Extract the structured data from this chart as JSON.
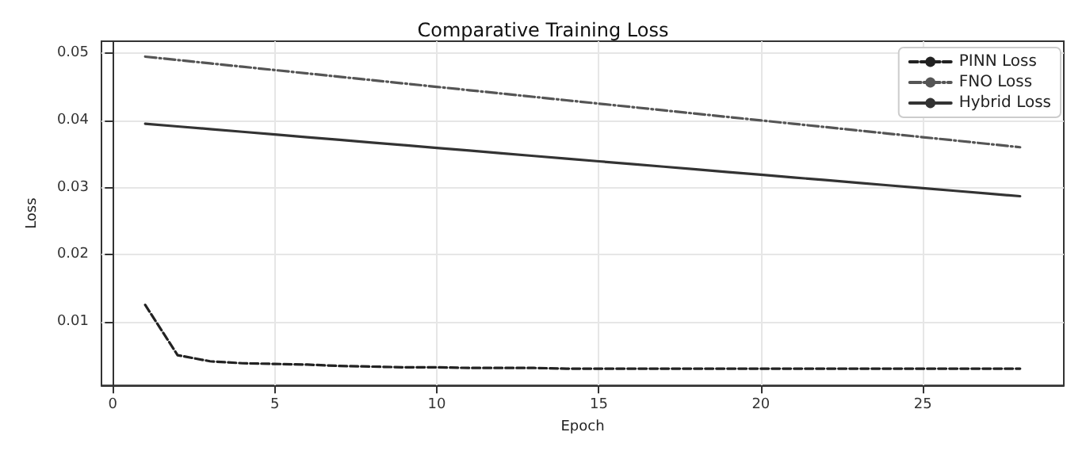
{
  "chart_data": {
    "type": "line",
    "title": "Comparative Training Loss",
    "xlabel": "Epoch",
    "ylabel": "Loss",
    "x": [
      1,
      2,
      3,
      4,
      5,
      6,
      7,
      8,
      9,
      10,
      11,
      12,
      13,
      14,
      15,
      16,
      17,
      18,
      19,
      20,
      21,
      22,
      23,
      24,
      25,
      26,
      27,
      28
    ],
    "series": [
      {
        "name": "PINN Loss",
        "color": "#222222",
        "line_style": "dashed",
        "values": [
          0.0125,
          0.005,
          0.0041,
          0.0038,
          0.0037,
          0.0036,
          0.0034,
          0.0033,
          0.0032,
          0.0032,
          0.0031,
          0.0031,
          0.0031,
          0.003,
          0.003,
          0.003,
          0.003,
          0.003,
          0.003,
          0.003,
          0.003,
          0.003,
          0.003,
          0.003,
          0.003,
          0.003,
          0.003,
          0.003
        ]
      },
      {
        "name": "FNO Loss",
        "color": "#555555",
        "line_style": "dashdot",
        "values": [
          0.0495,
          0.049,
          0.0485,
          0.048,
          0.0475,
          0.047,
          0.0465,
          0.046,
          0.0455,
          0.045,
          0.0445,
          0.044,
          0.0435,
          0.043,
          0.0425,
          0.042,
          0.0415,
          0.041,
          0.0405,
          0.04,
          0.0395,
          0.039,
          0.0385,
          0.038,
          0.0375,
          0.037,
          0.0365,
          0.036
        ]
      },
      {
        "name": "Hybrid Loss",
        "color": "#333333",
        "line_style": "solid",
        "values": [
          0.0395,
          0.0391,
          0.0387,
          0.0383,
          0.0379,
          0.0375,
          0.0371,
          0.0367,
          0.0363,
          0.0359,
          0.0355,
          0.0351,
          0.0347,
          0.0343,
          0.0339,
          0.0335,
          0.0331,
          0.0327,
          0.0323,
          0.0319,
          0.0315,
          0.0311,
          0.0307,
          0.0303,
          0.0299,
          0.0295,
          0.0291,
          0.0287
        ]
      }
    ],
    "xlim": [
      -0.35,
      29.35
    ],
    "ylim": [
      0.0005,
      0.0518
    ],
    "xticks": [
      0,
      5,
      10,
      15,
      20,
      25
    ],
    "yticks": [
      0.01,
      0.02,
      0.03,
      0.04,
      0.05
    ],
    "grid": true,
    "legend": "top right",
    "marker": "none"
  }
}
